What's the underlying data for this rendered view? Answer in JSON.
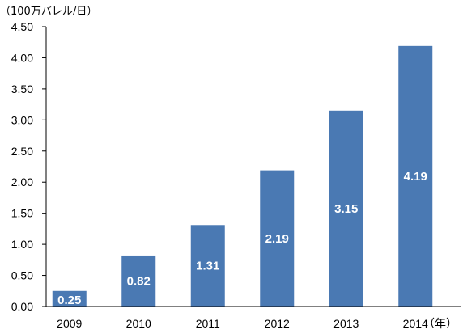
{
  "chart_data": {
    "type": "bar",
    "categories": [
      "2009",
      "2010",
      "2011",
      "2012",
      "2013",
      "2014"
    ],
    "values": [
      0.25,
      0.82,
      1.31,
      2.19,
      3.15,
      4.19
    ],
    "data_labels": [
      "0.25",
      "0.82",
      "1.31",
      "2.19",
      "3.15",
      "4.19"
    ],
    "y_ticks": [
      "0.00",
      "0.50",
      "1.00",
      "1.50",
      "2.00",
      "2.50",
      "3.00",
      "3.50",
      "4.00",
      "4.50"
    ],
    "ylim": [
      0,
      4.5
    ],
    "y_unit": "（100万バレル/日）",
    "x_unit": "（年）",
    "bar_color": "#4a79b3",
    "grid": false,
    "legend": "none"
  }
}
